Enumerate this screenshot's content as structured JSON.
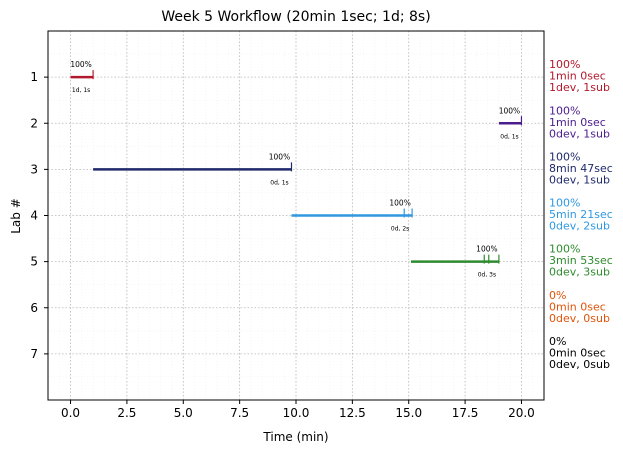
{
  "chart_data": {
    "type": "timeline",
    "title": "Week 5 Workflow (20min 1sec; 1d; 8s)",
    "xlabel": "Time (min)",
    "ylabel": "Lab #",
    "xlim": [
      -1.0,
      21.0
    ],
    "ylim": [
      8.0,
      0.0
    ],
    "xticks": [
      0.0,
      2.5,
      5.0,
      7.5,
      10.0,
      12.5,
      15.0,
      17.5,
      20.0
    ],
    "xtick_labels": [
      "0.0",
      "2.5",
      "5.0",
      "7.5",
      "10.0",
      "12.5",
      "15.0",
      "17.5",
      "20.0"
    ],
    "yticks": [
      1,
      2,
      3,
      4,
      5,
      6,
      7
    ],
    "ytick_labels": [
      "1",
      "2",
      "3",
      "4",
      "5",
      "6",
      "7"
    ],
    "grid": true,
    "labs": [
      {
        "lab": 1,
        "start": 0.0,
        "end": 1.0,
        "color": "#b2182b",
        "pct": "100%",
        "sub_label": "1d, 1s",
        "markers": [
          1.0
        ],
        "side": [
          "100%",
          "1min 0sec",
          "1dev, 1sub"
        ]
      },
      {
        "lab": 2,
        "start": 19.0,
        "end": 20.0,
        "color": "#4b1c8c",
        "pct": "100%",
        "sub_label": "0d, 1s",
        "markers": [
          20.0
        ],
        "side": [
          "100%",
          "1min 0sec",
          "0dev, 1sub"
        ]
      },
      {
        "lab": 3,
        "start": 1.0,
        "end": 9.8,
        "color": "#1f2a6b",
        "pct": "100%",
        "sub_label": "0d, 1s",
        "markers": [
          9.8
        ],
        "side": [
          "100%",
          "8min 47sec",
          "0dev, 1sub"
        ]
      },
      {
        "lab": 4,
        "start": 9.8,
        "end": 15.15,
        "color": "#2f98e0",
        "pct": "100%",
        "sub_label": "0d, 2s",
        "markers": [
          14.8,
          15.15
        ],
        "side": [
          "100%",
          "5min 21sec",
          "0dev, 2sub"
        ]
      },
      {
        "lab": 5,
        "start": 15.1,
        "end": 19.0,
        "color": "#2e8b2e",
        "pct": "100%",
        "sub_label": "0d, 3s",
        "markers": [
          18.35,
          18.55,
          19.0
        ],
        "side": [
          "100%",
          "3min 53sec",
          "0dev, 3sub"
        ]
      },
      {
        "lab": 6,
        "start": null,
        "end": null,
        "color": "#e0540a",
        "pct": "",
        "sub_label": "",
        "markers": [],
        "side": [
          "0%",
          "0min 0sec",
          "0dev, 0sub"
        ]
      },
      {
        "lab": 7,
        "start": null,
        "end": null,
        "color": "#000000",
        "pct": "",
        "sub_label": "",
        "markers": [],
        "side": [
          "0%",
          "0min 0sec",
          "0dev, 0sub"
        ]
      }
    ]
  }
}
